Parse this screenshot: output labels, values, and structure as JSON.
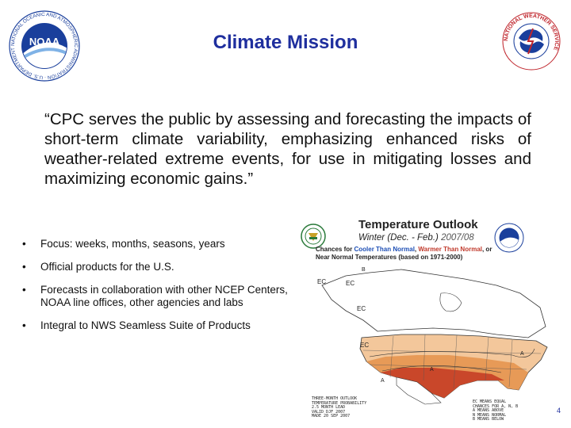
{
  "slide": {
    "title": "Climate Mission",
    "quote": "“CPC serves the public by assessing and forecasting the impacts of short-term climate variability, emphasizing enhanced risks of weather-related extreme events, for use in mitigating losses and maximizing economic gains.”",
    "bullet_symbol": "•",
    "bullets": [
      "Focus:  weeks, months, seasons, years",
      "Official products for the U.S.",
      "Forecasts in collaboration with other NCEP Centers, NOAA line offices, other agencies and labs",
      "Integral to NWS Seamless Suite of Products"
    ],
    "page_number": "4"
  },
  "logos": {
    "noaa_ring": "NATIONAL OCEANIC AND ATMOSPHERIC ADMINISTRATION · U.S. DEPARTMENT OF COMMERCE ·",
    "noaa_center": "NOAA",
    "nws_ring": "NATIONAL WEATHER SERVICE"
  },
  "outlook": {
    "title": "Temperature Outlook",
    "subtitle": "Winter (Dec. - Feb.)",
    "year": "2007/08",
    "legend_prefix": "Chances for ",
    "legend_cool": "Cooler Than Normal",
    "legend_mid": ", ",
    "legend_warm": "Warmer Than Normal",
    "legend_suffix": ", or Near Normal Temperatures (based on 1971-2000)",
    "labels": {
      "ec1": "EC",
      "ec2": "EC",
      "ec3": "EC",
      "ec4": "EC",
      "b": "B",
      "a1": "A",
      "a2": "A",
      "a3": "A"
    },
    "caption_left": "THREE-MONTH OUTLOOK\nTEMPERATURE PROBABILITY\n2.5 MONTH LEAD\nVALID DJF 2007\nMADE 20 SEP 2007",
    "caption_right": "EC MEANS EQUAL\nCHANCES FOR A, N, B\nA MEANS ABOVE\nN MEANS NORMAL\nB MEANS BELOW"
  },
  "colors": {
    "title": "#1f2f9e",
    "noaa_blue": "#1a3f9c",
    "nws_red": "#c0262d",
    "warm_light": "#f3c79b",
    "warm_mid": "#e79a57",
    "warm_dark": "#c9472a"
  }
}
